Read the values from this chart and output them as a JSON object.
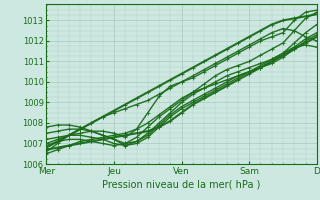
{
  "title": "",
  "xlabel": "Pression niveau de la mer( hPa )",
  "ylabel": "",
  "bg_color": "#cce8e0",
  "grid_color": "#a8c8c0",
  "line_color": "#1a6b1a",
  "ymin": 1006.0,
  "ymax": 1013.8,
  "day_labels": [
    "Mer",
    "Jeu",
    "Ven",
    "Sam",
    "D"
  ],
  "day_positions": [
    0,
    48,
    96,
    144,
    192
  ],
  "total_steps": 192,
  "series": [
    [
      1006.8,
      1007.1,
      1007.4,
      1007.7,
      1008.0,
      1008.3,
      1008.6,
      1008.9,
      1009.2,
      1009.5,
      1009.8,
      1010.1,
      1010.4,
      1010.7,
      1011.0,
      1011.3,
      1011.6,
      1011.9,
      1012.2,
      1012.5,
      1012.8,
      1013.0,
      1013.1,
      1013.2,
      1013.3
    ],
    [
      1006.6,
      1007.0,
      1007.4,
      1007.7,
      1008.0,
      1008.3,
      1008.5,
      1008.7,
      1008.9,
      1009.1,
      1009.4,
      1009.7,
      1010.0,
      1010.3,
      1010.6,
      1010.9,
      1011.2,
      1011.5,
      1011.8,
      1012.1,
      1012.4,
      1012.6,
      1012.5,
      1012.2,
      1012.0
    ],
    [
      1007.0,
      1007.2,
      1007.4,
      1007.5,
      1007.6,
      1007.6,
      1007.5,
      1007.3,
      1007.7,
      1008.5,
      1009.3,
      1009.8,
      1010.0,
      1010.2,
      1010.5,
      1010.8,
      1011.1,
      1011.4,
      1011.7,
      1012.0,
      1012.2,
      1012.4,
      1013.0,
      1013.4,
      1013.5
    ],
    [
      1006.9,
      1007.1,
      1007.2,
      1007.2,
      1007.1,
      1007.0,
      1006.9,
      1007.0,
      1007.3,
      1007.8,
      1008.3,
      1008.7,
      1009.1,
      1009.5,
      1009.9,
      1010.3,
      1010.6,
      1010.8,
      1011.0,
      1011.3,
      1011.6,
      1011.9,
      1012.5,
      1013.1,
      1013.4
    ],
    [
      1006.7,
      1006.8,
      1006.9,
      1007.0,
      1007.1,
      1007.2,
      1007.3,
      1007.4,
      1007.5,
      1007.6,
      1007.8,
      1008.1,
      1008.5,
      1008.9,
      1009.2,
      1009.5,
      1009.8,
      1010.1,
      1010.4,
      1010.7,
      1011.0,
      1011.3,
      1011.6,
      1011.9,
      1012.2
    ],
    [
      1007.2,
      1007.3,
      1007.4,
      1007.4,
      1007.3,
      1007.2,
      1007.0,
      1006.9,
      1007.1,
      1007.5,
      1008.0,
      1008.5,
      1009.0,
      1009.4,
      1009.7,
      1010.0,
      1010.3,
      1010.5,
      1010.7,
      1010.9,
      1011.1,
      1011.4,
      1011.9,
      1012.4,
      1012.8
    ],
    [
      1007.5,
      1007.6,
      1007.7,
      1007.7,
      1007.6,
      1007.4,
      1007.2,
      1006.9,
      1007.0,
      1007.3,
      1007.8,
      1008.3,
      1008.7,
      1009.0,
      1009.3,
      1009.6,
      1009.9,
      1010.2,
      1010.5,
      1010.8,
      1011.1,
      1011.4,
      1011.7,
      1011.8,
      1011.7
    ],
    [
      1007.8,
      1007.9,
      1007.9,
      1007.8,
      1007.6,
      1007.4,
      1007.2,
      1007.0,
      1007.1,
      1007.4,
      1007.9,
      1008.4,
      1008.8,
      1009.1,
      1009.4,
      1009.7,
      1010.0,
      1010.3,
      1010.5,
      1010.7,
      1010.9,
      1011.2,
      1011.6,
      1012.0,
      1012.3
    ],
    [
      1006.5,
      1006.7,
      1006.9,
      1007.1,
      1007.2,
      1007.3,
      1007.4,
      1007.5,
      1007.7,
      1008.0,
      1008.4,
      1008.8,
      1009.2,
      1009.5,
      1009.7,
      1009.9,
      1010.1,
      1010.3,
      1010.5,
      1010.7,
      1011.0,
      1011.3,
      1011.7,
      1012.1,
      1012.4
    ]
  ],
  "yticks": [
    1006,
    1007,
    1008,
    1009,
    1010,
    1011,
    1012,
    1013
  ],
  "xlabel_fontsize": 7,
  "tick_fontsize": 6,
  "line_widths": [
    1.5,
    1.0,
    1.0,
    1.0,
    1.5,
    1.0,
    1.0,
    1.0,
    1.0
  ]
}
